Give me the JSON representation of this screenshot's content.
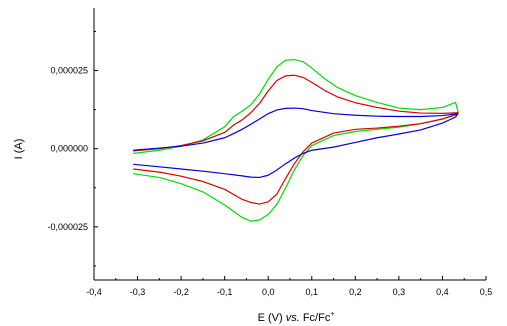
{
  "chart_data": {
    "type": "line",
    "title": "",
    "xlabel": {
      "prefix": "E (V) ",
      "italic": "vs.",
      "main": " Fc/Fc",
      "superscript": "+"
    },
    "ylabel": "I (A)",
    "xlim": [
      -0.4,
      0.5
    ],
    "ylim": [
      -4.2e-05,
      4.5e-05
    ],
    "x_ticks": [
      {
        "value": -0.4,
        "label": "-0,4"
      },
      {
        "value": -0.3,
        "label": "-0,3"
      },
      {
        "value": -0.2,
        "label": "-0,2"
      },
      {
        "value": -0.1,
        "label": "-0,1"
      },
      {
        "value": 0.0,
        "label": "0,0"
      },
      {
        "value": 0.1,
        "label": "0,1"
      },
      {
        "value": 0.2,
        "label": "0,2"
      },
      {
        "value": 0.3,
        "label": "0,3"
      },
      {
        "value": 0.4,
        "label": "0,4"
      },
      {
        "value": 0.5,
        "label": "0,5"
      }
    ],
    "y_ticks": [
      {
        "value": -2.5e-05,
        "label": "-0,000025"
      },
      {
        "value": 0.0,
        "label": "0,000000"
      },
      {
        "value": 2.5e-05,
        "label": "0,000025"
      }
    ],
    "grid": false,
    "legend": false,
    "series": [
      {
        "color": "#00dd00",
        "x": [
          -0.31,
          -0.25,
          -0.2,
          -0.15,
          -0.1,
          -0.08,
          -0.06,
          -0.04,
          -0.02,
          0.0,
          0.02,
          0.04,
          0.06,
          0.08,
          0.1,
          0.13,
          0.16,
          0.2,
          0.25,
          0.3,
          0.35,
          0.4,
          0.43,
          0.436,
          0.43,
          0.4,
          0.35,
          0.3,
          0.25,
          0.2,
          0.15,
          0.1,
          0.08,
          0.06,
          0.04,
          0.02,
          0.0,
          -0.02,
          -0.04,
          -0.06,
          -0.1,
          -0.15,
          -0.2,
          -0.25,
          -0.31
        ],
        "y": [
          -1.5e-06,
          -5e-07,
          8e-07,
          2.8e-06,
          7e-06,
          1.02e-05,
          1.2e-05,
          1.4e-05,
          1.75e-05,
          2.22e-05,
          2.62e-05,
          2.83e-05,
          2.85e-05,
          2.78e-05,
          2.58e-05,
          2.23e-05,
          1.95e-05,
          1.7e-05,
          1.48e-05,
          1.3e-05,
          1.25e-05,
          1.32e-05,
          1.48e-05,
          1.18e-05,
          1.1e-05,
          9.5e-06,
          8e-06,
          6.9e-06,
          6.2e-06,
          5.5e-06,
          4.2e-06,
          1e-06,
          -2.2e-06,
          -6.8e-06,
          -1.25e-05,
          -1.78e-05,
          -2.1e-05,
          -2.28e-05,
          -2.32e-05,
          -2.2e-05,
          -1.8e-05,
          -1.38e-05,
          -1.12e-05,
          -9.2e-06,
          -8e-06
        ]
      },
      {
        "color": "#dd0000",
        "x": [
          -0.31,
          -0.25,
          -0.2,
          -0.15,
          -0.1,
          -0.08,
          -0.06,
          -0.04,
          -0.02,
          0.0,
          0.02,
          0.04,
          0.06,
          0.08,
          0.1,
          0.13,
          0.16,
          0.2,
          0.25,
          0.3,
          0.35,
          0.4,
          0.436,
          0.43,
          0.4,
          0.35,
          0.3,
          0.25,
          0.2,
          0.15,
          0.1,
          0.08,
          0.06,
          0.04,
          0.02,
          0.0,
          -0.02,
          -0.04,
          -0.06,
          -0.1,
          -0.15,
          -0.2,
          -0.25,
          -0.31
        ],
        "y": [
          -7e-07,
          0.0,
          1e-06,
          2.5e-06,
          5.2e-06,
          7.5e-06,
          9.2e-06,
          1.15e-05,
          1.45e-05,
          1.85e-05,
          2.18e-05,
          2.33e-05,
          2.35e-05,
          2.28e-05,
          2.12e-05,
          1.86e-05,
          1.65e-05,
          1.47e-05,
          1.32e-05,
          1.2e-05,
          1.14e-05,
          1.13e-05,
          1.15e-05,
          1.08e-05,
          9.5e-06,
          8e-06,
          7.2e-06,
          6.6e-06,
          6.2e-06,
          5e-06,
          1.8e-06,
          -1e-06,
          -4.8e-06,
          -9.5e-06,
          -1.45e-05,
          -1.7e-05,
          -1.77e-05,
          -1.72e-05,
          -1.62e-05,
          -1.3e-05,
          -1.05e-05,
          -8.8e-06,
          -7.5e-06,
          -6.5e-06
        ]
      },
      {
        "color": "#0000dd",
        "x": [
          -0.31,
          -0.25,
          -0.2,
          -0.15,
          -0.1,
          -0.08,
          -0.06,
          -0.04,
          -0.02,
          0.0,
          0.02,
          0.04,
          0.06,
          0.08,
          0.1,
          0.15,
          0.2,
          0.25,
          0.3,
          0.35,
          0.4,
          0.436,
          0.43,
          0.4,
          0.35,
          0.3,
          0.25,
          0.2,
          0.15,
          0.1,
          0.08,
          0.06,
          0.04,
          0.02,
          0.0,
          -0.02,
          -0.04,
          -0.06,
          -0.1,
          -0.15,
          -0.2,
          -0.25,
          -0.31
        ],
        "y": [
          -5e-07,
          2e-07,
          8e-07,
          1.8e-06,
          3.5e-06,
          4.8e-06,
          6.2e-06,
          7.8e-06,
          9.5e-06,
          1.12e-05,
          1.24e-05,
          1.29e-05,
          1.3e-05,
          1.28e-05,
          1.22e-05,
          1.12e-05,
          1.07e-05,
          1.04e-05,
          1.03e-05,
          1.03e-05,
          1.06e-05,
          1.12e-05,
          1.01e-05,
          8.2e-06,
          6e-06,
          4.7e-06,
          3.5e-06,
          2e-06,
          5e-07,
          -5e-07,
          -1.5e-06,
          -3e-06,
          -4.8e-06,
          -6.8e-06,
          -8.5e-06,
          -9.2e-06,
          -9.1e-06,
          -8.7e-06,
          -8e-06,
          -7.2e-06,
          -6.5e-06,
          -5.8e-06,
          -5e-06
        ]
      }
    ]
  }
}
